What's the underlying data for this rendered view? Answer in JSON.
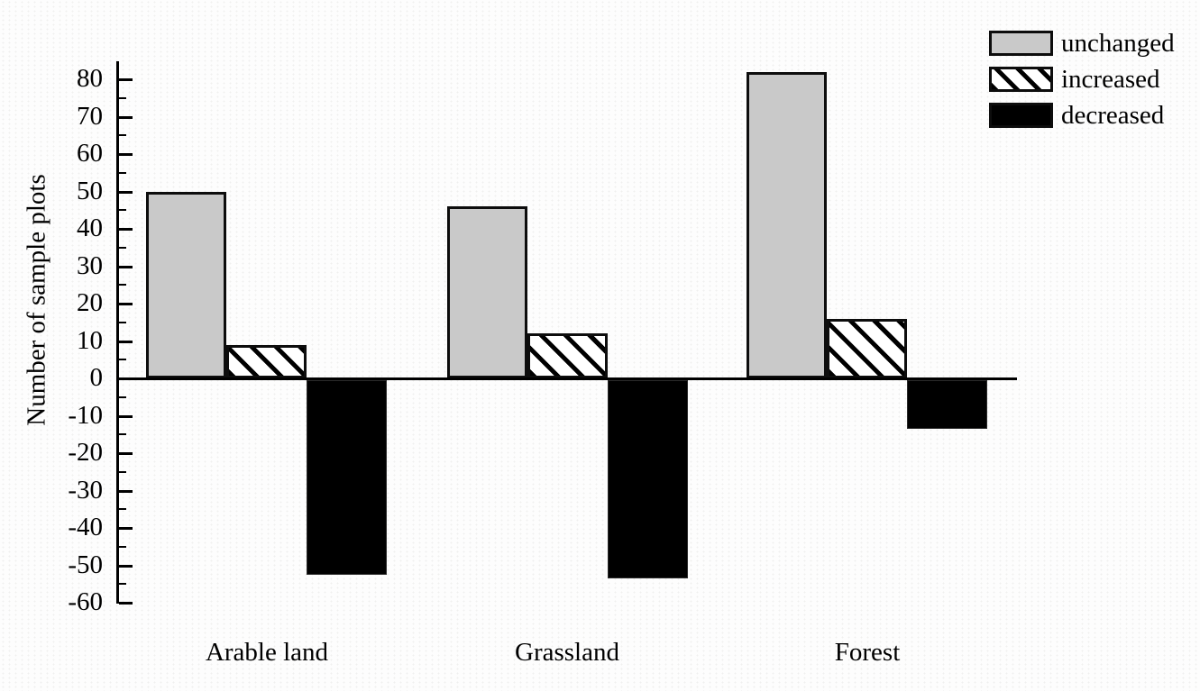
{
  "chart_data": {
    "type": "bar",
    "title": "",
    "xlabel": "",
    "ylabel": "Number of sample plots",
    "categories": [
      "Arable land",
      "Grassland",
      "Forest"
    ],
    "series": [
      {
        "name": "unchanged",
        "values": [
          50,
          46,
          82
        ],
        "fill": "#c9c9c9",
        "pattern": "solid"
      },
      {
        "name": "increased",
        "values": [
          9,
          12,
          16
        ],
        "fill": "#ffffff",
        "pattern": "diagonal-hatch"
      },
      {
        "name": "decreased",
        "values": [
          -52,
          -53,
          -13
        ],
        "fill": "#000000",
        "pattern": "black"
      }
    ],
    "ylim": [
      -60,
      85
    ],
    "yticks": [
      80,
      70,
      60,
      50,
      40,
      30,
      20,
      10,
      0,
      -10,
      -20,
      -30,
      -40,
      -50,
      -60
    ],
    "minor_tick_step": 5,
    "grid": false,
    "legend_position": "top-right",
    "axis_color": "#000000"
  }
}
